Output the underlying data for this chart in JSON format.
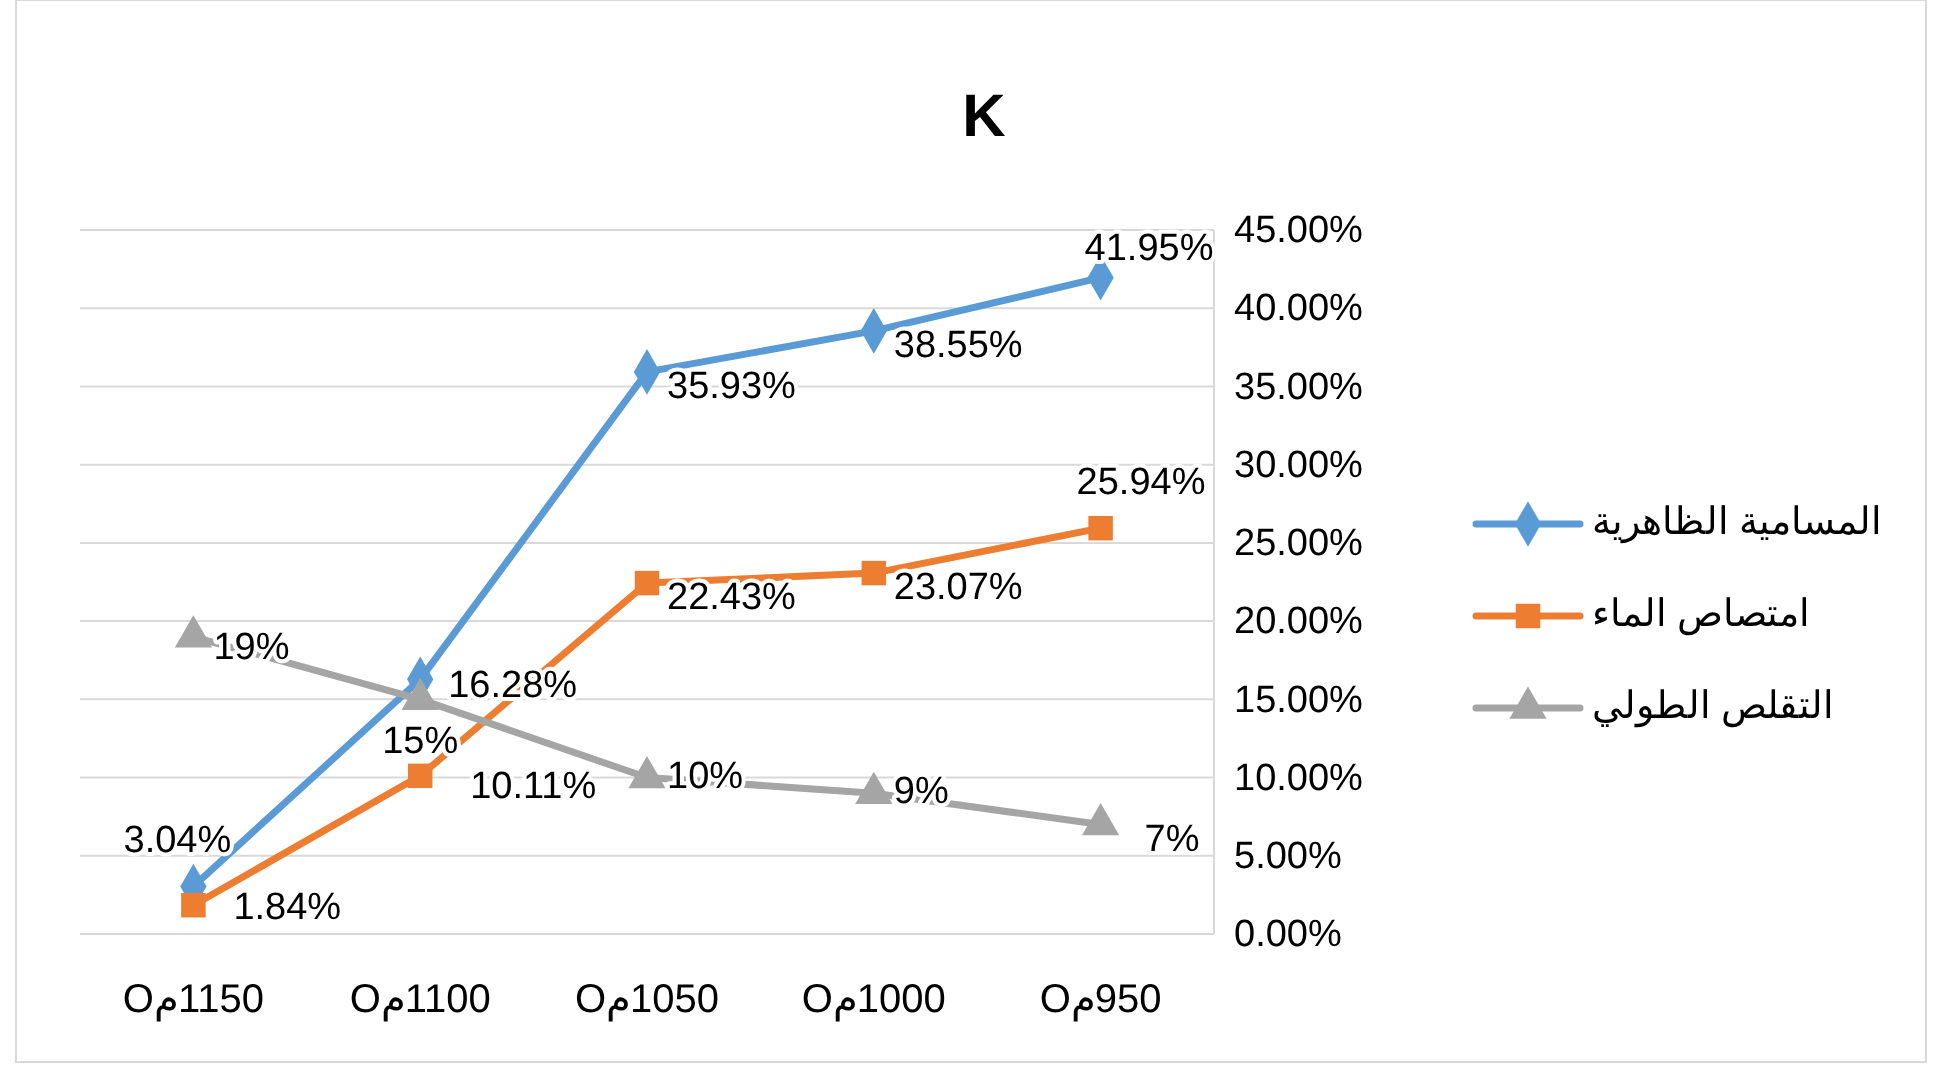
{
  "chart_data": {
    "type": "line",
    "title": "K",
    "categories": [
      "Oم1150",
      "Oم1100",
      "Oم1050",
      "Oم1000",
      "Oم950"
    ],
    "series": [
      {
        "name": "المسامية الظاهرية",
        "color": "#5b9bd5",
        "marker": "diamond",
        "values": [
          3.04,
          16.28,
          35.93,
          38.55,
          41.95
        ],
        "value_labels": [
          "3.04%",
          "16.28%",
          "35.93%",
          "38.55%",
          "41.95%"
        ]
      },
      {
        "name": "امتصاص الماء",
        "color": "#ed7d31",
        "marker": "square",
        "values": [
          1.84,
          10.11,
          22.43,
          23.07,
          25.94
        ],
        "value_labels": [
          "1.84%",
          "10.11%",
          "22.43%",
          "23.07%",
          "25.94%"
        ]
      },
      {
        "name": "التقلص الطولي",
        "color": "#a5a5a5",
        "marker": "triangle",
        "values": [
          19,
          15,
          10,
          9,
          7
        ],
        "value_labels": [
          "19%",
          "15%",
          "10%",
          "9%",
          "7%"
        ]
      }
    ],
    "ylim": [
      0,
      45
    ],
    "yticks": [
      {
        "value": 0,
        "label": "0.00%"
      },
      {
        "value": 5,
        "label": "5.00%"
      },
      {
        "value": 10,
        "label": "10.00%"
      },
      {
        "value": 15,
        "label": "15.00%"
      },
      {
        "value": 20,
        "label": "20.00%"
      },
      {
        "value": 25,
        "label": "25.00%"
      },
      {
        "value": 30,
        "label": "30.00%"
      },
      {
        "value": 35,
        "label": "35.00%"
      },
      {
        "value": 40,
        "label": "40.00%"
      },
      {
        "value": 45,
        "label": "45.00%"
      }
    ],
    "grid": "y",
    "legend": "right"
  }
}
